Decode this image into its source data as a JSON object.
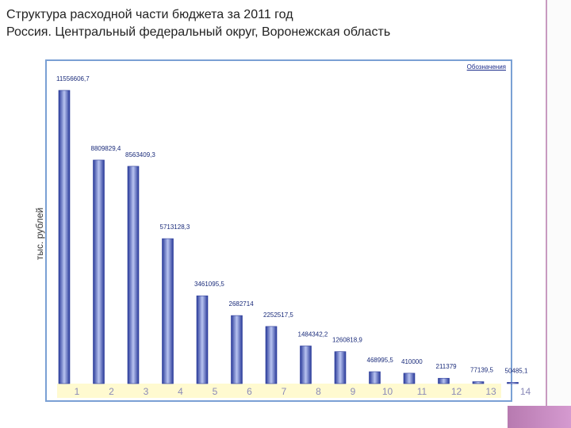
{
  "title_lines": [
    "Структура расходной части бюджета за 2011 год",
    "Россия. Центральный федеральный округ, Воронежская область"
  ],
  "legend_link": "Обозначения",
  "chart_data": {
    "type": "bar",
    "title": "Структура расходной части бюджета за 2011 год",
    "ylabel": "тыс. рублей",
    "xlabel": "",
    "categories": [
      "1",
      "2",
      "3",
      "4",
      "5",
      "6",
      "7",
      "8",
      "9",
      "10",
      "11",
      "12",
      "13",
      "14"
    ],
    "values": [
      11556606.7,
      8809829.4,
      8563409.3,
      5713128.3,
      3461095.5,
      2682714,
      2252517.5,
      1484342.2,
      1260818.9,
      468995.5,
      410000,
      211379,
      77139.5,
      50485.1
    ],
    "value_labels": [
      "11556606,7",
      "8809829,4",
      "8563409,3",
      "5713128,3",
      "3461095,5",
      "2682714",
      "2252517,5",
      "1484342,2",
      "1260818,9",
      "468995,5",
      "410000",
      "211379",
      "77139,5",
      "50485,1"
    ],
    "ylim": [
      0,
      11556606.7
    ],
    "colors": {
      "bar_edge": "#2a3a9a",
      "bar_center": "#b8c4f0",
      "axis_band": "#fffad0",
      "frame": "#7aa0d4"
    }
  }
}
